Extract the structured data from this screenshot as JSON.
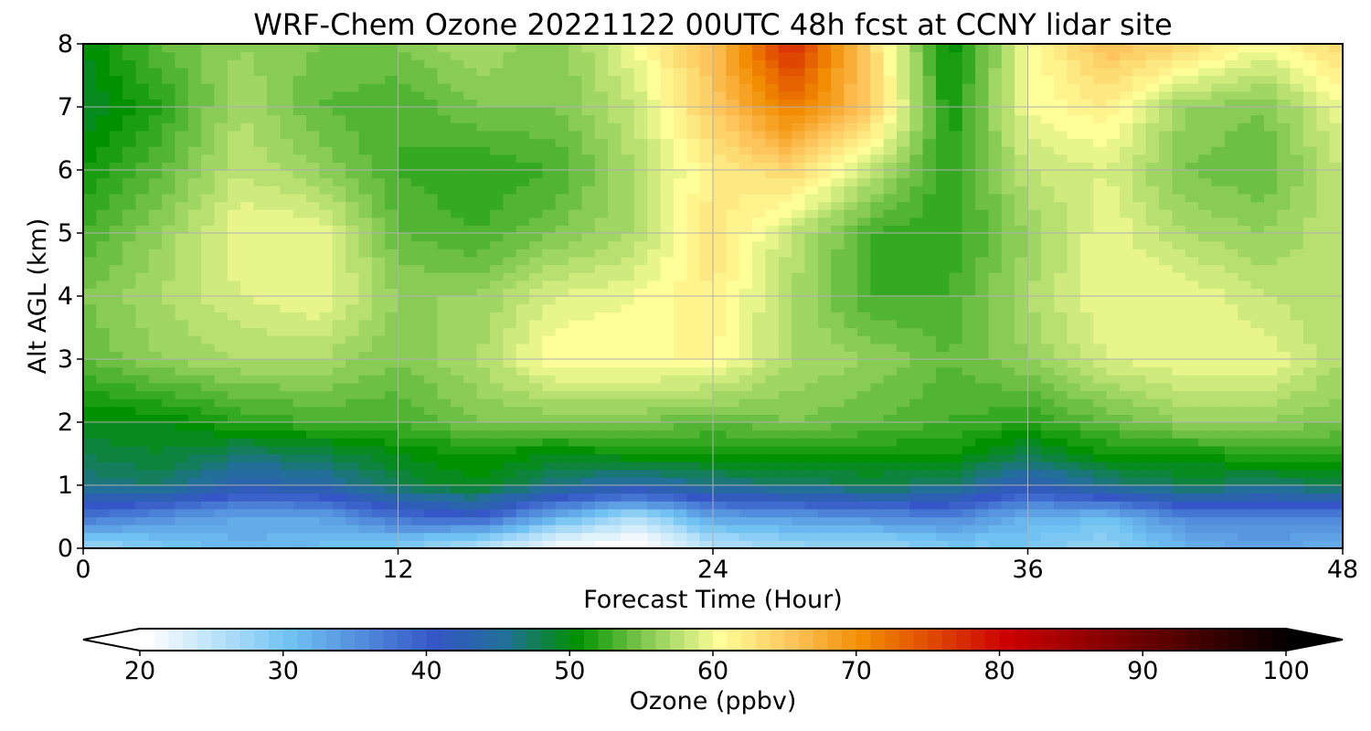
{
  "chart_data": {
    "type": "heatmap",
    "subtype": "filled-contour",
    "title": "WRF-Chem Ozone  20221122 00UTC 48h fcst at CCNY lidar site",
    "xlabel": "Forecast Time (Hour)",
    "ylabel": "Alt AGL (km)",
    "xlim": [
      0,
      48
    ],
    "ylim": [
      0,
      8
    ],
    "x_ticks": [
      0,
      12,
      24,
      36,
      48
    ],
    "y_ticks": [
      0,
      1,
      2,
      3,
      4,
      5,
      6,
      7,
      8
    ],
    "grid": true,
    "x": [
      0,
      3,
      6,
      9,
      12,
      15,
      18,
      21,
      24,
      27,
      30,
      33,
      36,
      39,
      42,
      45,
      48
    ],
    "y": [
      0.1,
      0.5,
      1.0,
      1.5,
      2.0,
      3.0,
      4.0,
      5.0,
      6.0,
      7.0,
      8.0
    ],
    "values": [
      [
        28,
        30,
        32,
        31,
        30,
        27,
        22,
        20,
        26,
        28,
        28,
        30,
        30,
        28,
        32,
        34,
        32
      ],
      [
        38,
        35,
        33,
        33,
        38,
        40,
        32,
        26,
        33,
        34,
        35,
        36,
        32,
        31,
        36,
        36,
        36
      ],
      [
        46,
        47,
        43,
        44,
        48,
        50,
        46,
        44,
        46,
        47,
        48,
        47,
        42,
        46,
        48,
        47,
        48
      ],
      [
        48,
        49,
        47,
        48,
        50,
        51,
        50,
        51,
        51,
        51,
        51,
        51,
        48,
        51,
        51,
        52,
        52
      ],
      [
        50,
        50,
        52,
        53,
        53,
        55,
        55,
        55,
        54,
        55,
        54,
        53,
        52,
        54,
        56,
        56,
        55
      ],
      [
        54,
        56,
        57,
        57,
        55,
        57,
        61,
        61,
        61,
        57,
        56,
        54,
        56,
        59,
        60,
        60,
        57
      ],
      [
        55,
        57,
        59,
        60,
        56,
        56,
        59,
        60,
        62,
        57,
        53,
        53,
        57,
        60,
        60,
        58,
        57
      ],
      [
        53,
        56,
        60,
        60,
        54,
        53,
        55,
        57,
        63,
        58,
        53,
        52,
        56,
        60,
        57,
        56,
        58
      ],
      [
        51,
        54,
        58,
        56,
        53,
        52,
        53,
        57,
        62,
        64,
        58,
        52,
        58,
        59,
        55,
        54,
        58
      ],
      [
        49,
        52,
        57,
        54,
        53,
        55,
        55,
        58,
        65,
        72,
        65,
        51,
        60,
        62,
        56,
        55,
        60
      ],
      [
        50,
        54,
        56,
        55,
        55,
        57,
        55,
        60,
        66,
        78,
        64,
        50,
        60,
        66,
        64,
        60,
        64
      ]
    ],
    "colorbar": {
      "label": "Ozone  (ppbv)",
      "min": 20,
      "max": 100,
      "step": 1,
      "extend": "both",
      "ticks": [
        20,
        30,
        40,
        50,
        60,
        70,
        80,
        90,
        100
      ],
      "color_stops": [
        [
          20,
          "#ffffff"
        ],
        [
          30,
          "#6fc2f2"
        ],
        [
          40,
          "#3556c6"
        ],
        [
          45,
          "#226f99"
        ],
        [
          50,
          "#009100"
        ],
        [
          55,
          "#88cc55"
        ],
        [
          60,
          "#ffff99"
        ],
        [
          65,
          "#fdc55c"
        ],
        [
          70,
          "#f28c00"
        ],
        [
          80,
          "#cc0000"
        ],
        [
          90,
          "#660000"
        ],
        [
          100,
          "#000000"
        ]
      ]
    }
  }
}
